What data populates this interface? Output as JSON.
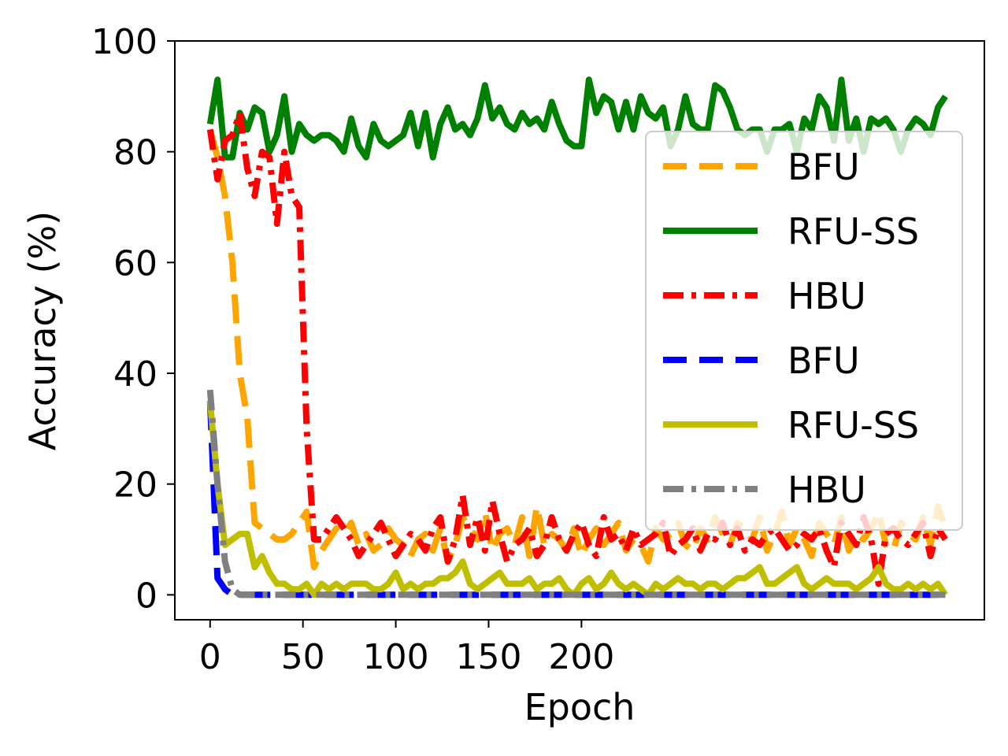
{
  "chart_data": {
    "type": "line",
    "title": "",
    "xlabel": "Epoch",
    "ylabel": "Accuracy (%)",
    "xlim": [
      -19,
      417
    ],
    "ylim": [
      -4.5,
      100
    ],
    "xticks": [
      0,
      50,
      100,
      150,
      200
    ],
    "xtick_labels": [
      "0",
      "50",
      "100",
      "150",
      "200"
    ],
    "yticks": [
      0,
      20,
      40,
      60,
      80,
      100
    ],
    "ytick_labels": [
      "0",
      "20",
      "40",
      "60",
      "80",
      "100"
    ],
    "grid": false,
    "legend_position": "right",
    "x": [
      0,
      4,
      8,
      12,
      16,
      20,
      24,
      28,
      32,
      36,
      40,
      44,
      48,
      52,
      56,
      60,
      64,
      68,
      72,
      76,
      80,
      84,
      88,
      92,
      96,
      100,
      104,
      108,
      112,
      116,
      120,
      124,
      128,
      132,
      136,
      140,
      144,
      148,
      152,
      156,
      160,
      164,
      168,
      172,
      176,
      180,
      184,
      188,
      192,
      196,
      200,
      204,
      208,
      212,
      216,
      220,
      224,
      228,
      232,
      236,
      240,
      244,
      248,
      252,
      256,
      260,
      264,
      268,
      272,
      276,
      280,
      284,
      288,
      292,
      296,
      300,
      304,
      308,
      312,
      316,
      320,
      324,
      328,
      332,
      336,
      340,
      344,
      348,
      352,
      356,
      360,
      364,
      368,
      372,
      376,
      380,
      384,
      388,
      392,
      396
    ],
    "series": [
      {
        "name": "BFU",
        "color": "#ffa500",
        "dash": "long-dash",
        "values": [
          84,
          79,
          72,
          60,
          40,
          32,
          13,
          12,
          11,
          10,
          10,
          11,
          13,
          15,
          5,
          8,
          10,
          12,
          11,
          13,
          9,
          11,
          8,
          9,
          12,
          10,
          9,
          7,
          10,
          11,
          8,
          12,
          6,
          9,
          14,
          12,
          10,
          15,
          8,
          11,
          12,
          9,
          14,
          7,
          16,
          9,
          11,
          10,
          8,
          12,
          7,
          10,
          12,
          9,
          11,
          13,
          8,
          10,
          9,
          6,
          12,
          10,
          11,
          13,
          9,
          8,
          12,
          10,
          14,
          11,
          9,
          13,
          12,
          10,
          14,
          8,
          11,
          15,
          9,
          12,
          10,
          7,
          13,
          11,
          9,
          14,
          8,
          11,
          10,
          12,
          15,
          9,
          8,
          13,
          11,
          10,
          14,
          9,
          16,
          12
        ]
      },
      {
        "name": "RFU-SS",
        "color": "#008000",
        "dash": "solid",
        "values": [
          85,
          93,
          79,
          79,
          87,
          84,
          88,
          87,
          80,
          83,
          90,
          80,
          85,
          83,
          82,
          83,
          83,
          82,
          80,
          86,
          81,
          79,
          85,
          82,
          81,
          82,
          83,
          87,
          81,
          87,
          79,
          85,
          88,
          84,
          85,
          83,
          86,
          92,
          86,
          88,
          85,
          84,
          87,
          85,
          86,
          84,
          89,
          85,
          82,
          81,
          81,
          93,
          87,
          90,
          89,
          84,
          89,
          84,
          90,
          87,
          86,
          88,
          81,
          84,
          90,
          85,
          84,
          84,
          92,
          91,
          88,
          84,
          83,
          84,
          84,
          80,
          84,
          84,
          85,
          80,
          86,
          84,
          90,
          88,
          82,
          93,
          82,
          86,
          80,
          86,
          85,
          86,
          84,
          80,
          84,
          86,
          85,
          83,
          88,
          90
        ]
      },
      {
        "name": "HBU",
        "color": "#ff0000",
        "dash": "dash-dot",
        "values": [
          84,
          75,
          82,
          83,
          87,
          77,
          72,
          80,
          79,
          67,
          80,
          72,
          70,
          30,
          10,
          10,
          12,
          14,
          12,
          10,
          7,
          9,
          11,
          13,
          10,
          7,
          9,
          11,
          10,
          8,
          12,
          14,
          6,
          10,
          18,
          9,
          14,
          8,
          17,
          11,
          6,
          9,
          10,
          12,
          7,
          9,
          14,
          10,
          8,
          11,
          13,
          9,
          7,
          14,
          10,
          11,
          8,
          12,
          9,
          10,
          11,
          13,
          7,
          9,
          10,
          12,
          8,
          11,
          10,
          13,
          9,
          12,
          8,
          10,
          9,
          11,
          12,
          10,
          8,
          9,
          11,
          10,
          12,
          8,
          5,
          13,
          11,
          9,
          14,
          10,
          2,
          11,
          12,
          10,
          9,
          11,
          13,
          7,
          12,
          10
        ]
      },
      {
        "name": "BFU",
        "color": "#0000ff",
        "dash": "long-dash",
        "values": [
          35,
          3,
          1,
          0,
          0,
          0,
          0,
          0,
          0,
          0,
          0,
          0,
          0,
          0,
          0,
          0,
          0,
          0,
          0,
          0,
          0,
          0,
          0,
          0,
          0,
          0,
          0,
          0,
          0,
          0,
          0,
          0,
          0,
          0,
          0,
          0,
          0,
          0,
          0,
          0,
          0,
          0,
          0,
          0,
          0,
          0,
          0,
          0,
          0,
          0,
          0,
          0,
          0,
          0,
          0,
          0,
          0,
          0,
          0,
          0,
          0,
          0,
          0,
          0,
          0,
          0,
          0,
          0,
          0,
          0,
          0,
          0,
          0,
          0,
          0,
          0,
          0,
          0,
          0,
          0,
          0,
          0,
          0,
          0,
          0,
          0,
          0,
          0,
          0,
          0,
          0,
          0,
          0,
          0,
          0,
          0,
          0,
          0,
          0,
          0
        ]
      },
      {
        "name": "RFU-SS",
        "color": "#bfbf00",
        "dash": "solid",
        "values": [
          35,
          20,
          9,
          10,
          11,
          11,
          5,
          7,
          4,
          2,
          2,
          1,
          1,
          2,
          0,
          2,
          1,
          2,
          1,
          2,
          2,
          2,
          1,
          1,
          2,
          4,
          1,
          2,
          1,
          2,
          2,
          3,
          3,
          4,
          6,
          2,
          1,
          2,
          3,
          4,
          2,
          2,
          2,
          3,
          1,
          2,
          2,
          3,
          1,
          0,
          2,
          3,
          1,
          2,
          4,
          2,
          1,
          2,
          1,
          0,
          2,
          1,
          2,
          3,
          2,
          2,
          1,
          2,
          2,
          1,
          2,
          3,
          3,
          4,
          5,
          2,
          2,
          3,
          4,
          5,
          2,
          1,
          2,
          3,
          2,
          2,
          2,
          1,
          2,
          3,
          5,
          2,
          1,
          1,
          2,
          1,
          2,
          1,
          2,
          0
        ]
      },
      {
        "name": "HBU",
        "color": "#808080",
        "dash": "dash-dot",
        "values": [
          37,
          20,
          6,
          1,
          0,
          0,
          0,
          0,
          0,
          0,
          0,
          0,
          0,
          0,
          0,
          0,
          0,
          0,
          0,
          0,
          0,
          0,
          0,
          0,
          0,
          0,
          0,
          0,
          0,
          0,
          0,
          0,
          0,
          0,
          0,
          0,
          0,
          0,
          0,
          0,
          0,
          0,
          0,
          0,
          0,
          0,
          0,
          0,
          0,
          0,
          0,
          0,
          0,
          0,
          0,
          0,
          0,
          0,
          0,
          0,
          0,
          0,
          0,
          0,
          0,
          0,
          0,
          0,
          0,
          0,
          0,
          0,
          0,
          0,
          0,
          0,
          0,
          0,
          0,
          0,
          0,
          0,
          0,
          0,
          0,
          0,
          0,
          0,
          0,
          0,
          0,
          0,
          0,
          0,
          0,
          0,
          0,
          0,
          0,
          0
        ]
      }
    ]
  }
}
